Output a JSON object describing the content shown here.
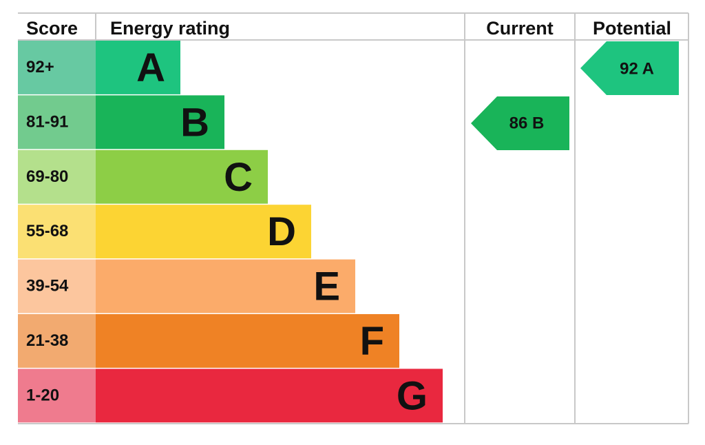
{
  "header": {
    "score": "Score",
    "energy_rating": "Energy rating",
    "current": "Current",
    "potential": "Potential"
  },
  "bands": [
    {
      "score": "92+",
      "letter": "A"
    },
    {
      "score": "81-91",
      "letter": "B"
    },
    {
      "score": "69-80",
      "letter": "C"
    },
    {
      "score": "55-68",
      "letter": "D"
    },
    {
      "score": "39-54",
      "letter": "E"
    },
    {
      "score": "21-38",
      "letter": "F"
    },
    {
      "score": "1-20",
      "letter": "G"
    }
  ],
  "current": {
    "label": "86 B"
  },
  "potential": {
    "label": "92 A"
  }
}
